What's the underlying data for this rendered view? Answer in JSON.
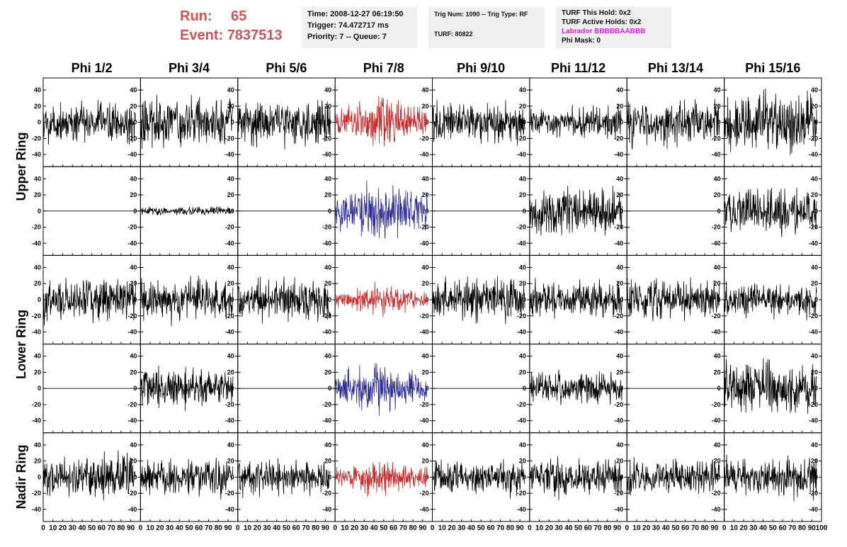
{
  "header": {
    "run_label": "Run:",
    "run_value": "65",
    "event_label": "Event:",
    "event_value": "7837513",
    "time_line": "Time: 2008-12-27 06:19:50",
    "trigger_line": "Trigger: 74.472717 ms",
    "priority_line": "Priority: 7 -- Queue: 7",
    "trig_line": "Trig Num: 1090 -- Trig Type: RF",
    "turf_line": "TURF: 80822",
    "turf_hold_line": "TURF This Hold: 0x2",
    "turf_active_line": "TURF Active Holds: 0x2",
    "labrador_line": "Labrador BBBBBAABBB",
    "phi_mask_line": "Phi Mask: 0"
  },
  "colors": {
    "run_text": "#d35353",
    "labrador_text": "#e61ee6",
    "trace_default": "#000000",
    "trace_vpol": "#cc2a2a",
    "trace_hpol": "#2a2a99"
  },
  "chart_data": {
    "type": "line",
    "columns": [
      "Phi 1/2",
      "Phi 3/4",
      "Phi 5/6",
      "Phi 7/8",
      "Phi 9/10",
      "Phi 11/12",
      "Phi 13/14",
      "Phi 15/16"
    ],
    "row_groups": [
      "Upper Ring",
      "Lower Ring",
      "Nadir Ring"
    ],
    "panel_rows": [
      "upper-v",
      "upper-h",
      "lower-v",
      "lower-h",
      "nadir-v"
    ],
    "xlim": [
      0,
      100
    ],
    "ylim": [
      -55,
      55
    ],
    "y_ticks": [
      -40,
      -20,
      0,
      20,
      40
    ],
    "x_ticks": [
      0,
      10,
      20,
      30,
      40,
      50,
      60,
      70,
      80,
      90,
      100
    ],
    "x_tick_labels": [
      "0",
      "10",
      "20",
      "30",
      "40",
      "50",
      "60",
      "70",
      "80",
      "90",
      "100"
    ],
    "trace_x_max": 95,
    "trace_amplitudes": [
      [
        16,
        18,
        16,
        17,
        15,
        11,
        16,
        20
      ],
      [
        0,
        3,
        0,
        20,
        0,
        17,
        0,
        16
      ],
      [
        15,
        15,
        15,
        10,
        15,
        13,
        15,
        12
      ],
      [
        0,
        15,
        0,
        17,
        0,
        12,
        0,
        19
      ],
      [
        15,
        14,
        13,
        12,
        12,
        13,
        12,
        15
      ]
    ],
    "trace_colors": [
      [
        "default",
        "default",
        "default",
        "vpol",
        "default",
        "default",
        "default",
        "default"
      ],
      [
        "default",
        "default",
        "default",
        "hpol",
        "default",
        "default",
        "default",
        "default"
      ],
      [
        "default",
        "default",
        "default",
        "vpol",
        "default",
        "default",
        "default",
        "default"
      ],
      [
        "default",
        "default",
        "default",
        "hpol",
        "default",
        "default",
        "default",
        "default"
      ],
      [
        "default",
        "default",
        "default",
        "vpol",
        "default",
        "default",
        "default",
        "default"
      ]
    ]
  }
}
